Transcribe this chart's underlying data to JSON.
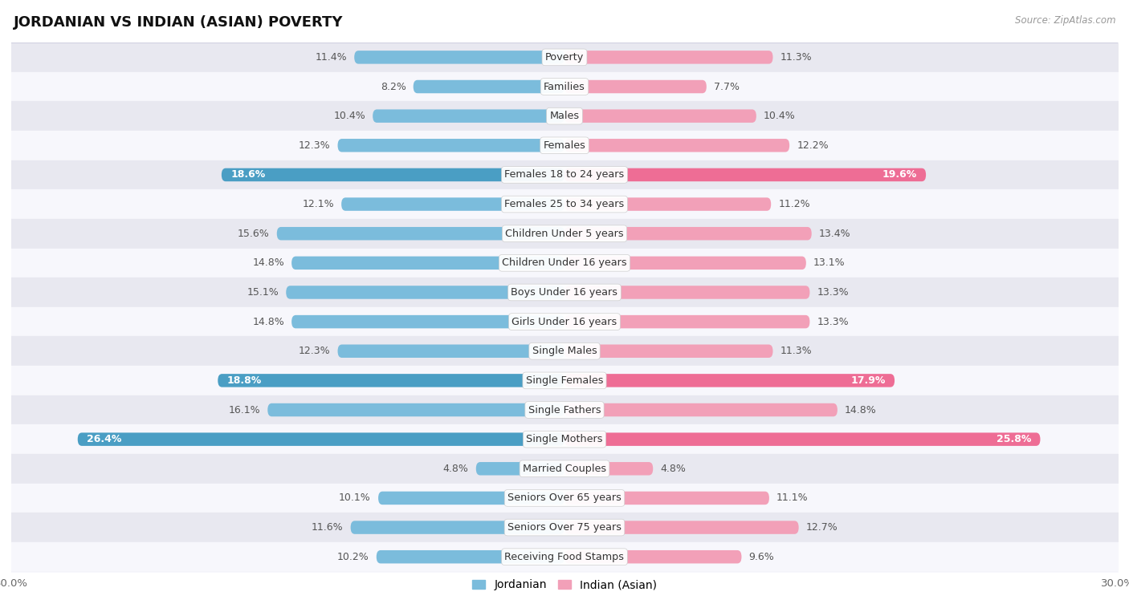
{
  "title": "JORDANIAN VS INDIAN (ASIAN) POVERTY",
  "source": "Source: ZipAtlas.com",
  "categories": [
    "Poverty",
    "Families",
    "Males",
    "Females",
    "Females 18 to 24 years",
    "Females 25 to 34 years",
    "Children Under 5 years",
    "Children Under 16 years",
    "Boys Under 16 years",
    "Girls Under 16 years",
    "Single Males",
    "Single Females",
    "Single Fathers",
    "Single Mothers",
    "Married Couples",
    "Seniors Over 65 years",
    "Seniors Over 75 years",
    "Receiving Food Stamps"
  ],
  "jordanian": [
    11.4,
    8.2,
    10.4,
    12.3,
    18.6,
    12.1,
    15.6,
    14.8,
    15.1,
    14.8,
    12.3,
    18.8,
    16.1,
    26.4,
    4.8,
    10.1,
    11.6,
    10.2
  ],
  "indian": [
    11.3,
    7.7,
    10.4,
    12.2,
    19.6,
    11.2,
    13.4,
    13.1,
    13.3,
    13.3,
    11.3,
    17.9,
    14.8,
    25.8,
    4.8,
    11.1,
    12.7,
    9.6
  ],
  "jordanian_color": "#7BBCDC",
  "indian_color": "#F2A0B8",
  "highlight_jordanian": "#4A9EC4",
  "highlight_indian": "#EE6D95",
  "row_color_even": "#e8e8f0",
  "row_color_odd": "#f7f7fc",
  "separator_color": "#d0d0e0",
  "axis_max": 30.0,
  "bar_height": 0.45,
  "label_fontsize": 9.2,
  "value_fontsize": 9.0,
  "title_fontsize": 13,
  "highlight_indices": [
    4,
    11,
    13
  ]
}
